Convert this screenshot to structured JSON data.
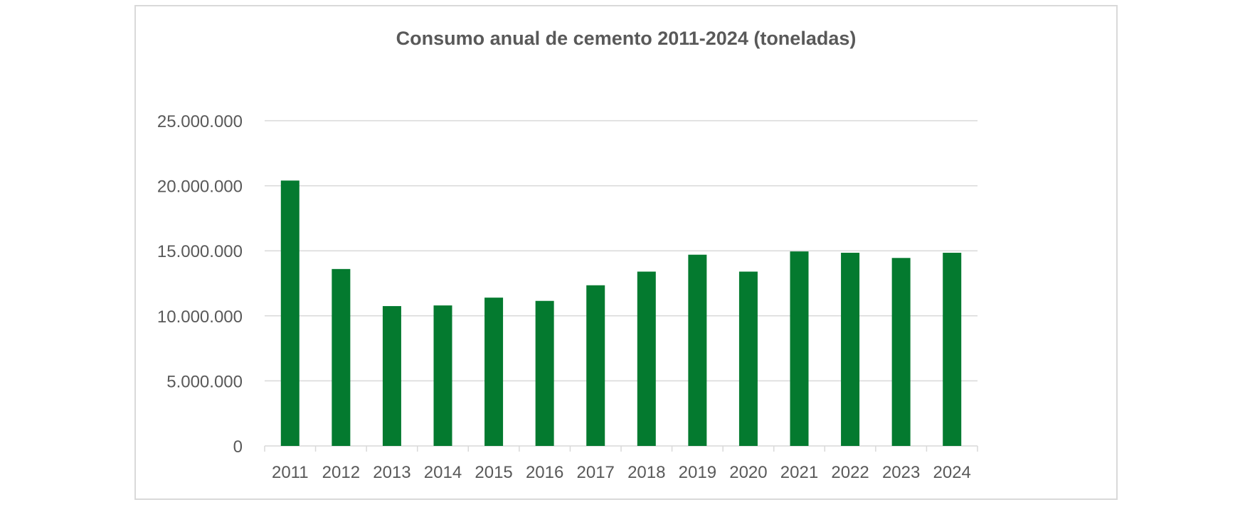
{
  "chart_data": {
    "type": "bar",
    "title": "Consumo anual de cemento 2011-2024 (toneladas)",
    "xlabel": "",
    "ylabel": "",
    "categories": [
      "2011",
      "2012",
      "2013",
      "2014",
      "2015",
      "2016",
      "2017",
      "2018",
      "2019",
      "2020",
      "2021",
      "2022",
      "2023",
      "2024"
    ],
    "values": [
      20400000,
      13600000,
      10750000,
      10800000,
      11400000,
      11150000,
      12350000,
      13400000,
      14700000,
      13400000,
      14950000,
      14850000,
      14450000,
      14850000
    ],
    "ylim": [
      0,
      25000000
    ],
    "yticks": [
      0,
      5000000,
      10000000,
      15000000,
      20000000,
      25000000
    ],
    "ytick_labels": [
      "0",
      "5.000.000",
      "10.000.000",
      "15.000.000",
      "20.000.000",
      "25.000.000"
    ],
    "grid": true,
    "legend": "none",
    "bar_color": "#047a2f",
    "grid_color": "#d9d9d9",
    "text_color": "#595959"
  }
}
